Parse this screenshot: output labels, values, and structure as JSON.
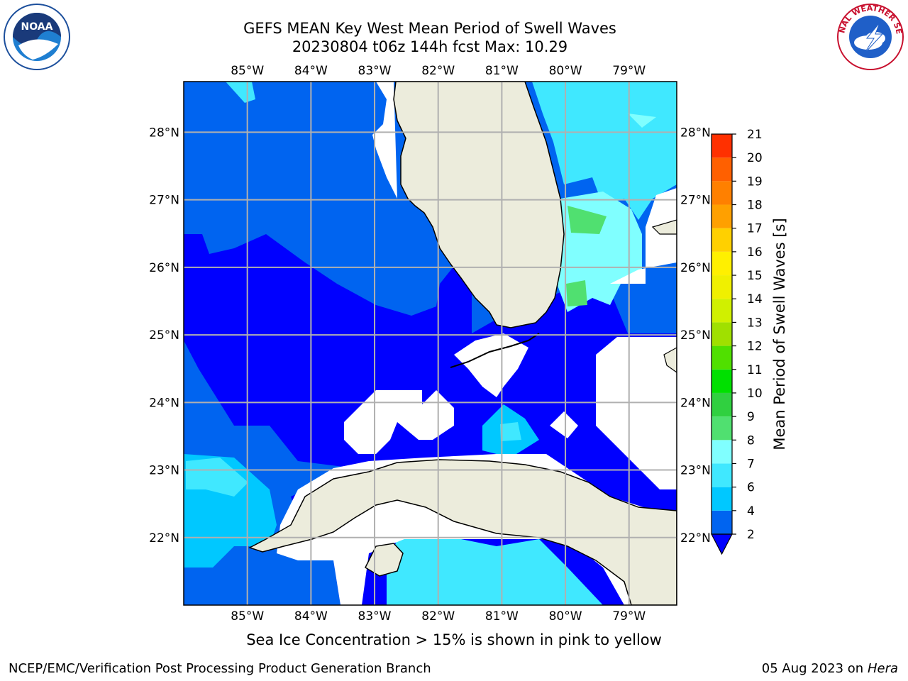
{
  "header": {
    "title_line1": "GEFS MEAN Key West Mean Period of Swell Waves",
    "title_line2": "20230804 t06z 144h fcst   Max: 10.29"
  },
  "logos": {
    "left": "NOAA",
    "right": "NATIONAL WEATHER SERVICE"
  },
  "map": {
    "lon_labels": [
      "85°W",
      "84°W",
      "83°W",
      "82°W",
      "81°W",
      "80°W",
      "79°W"
    ],
    "lat_labels": [
      "28°N",
      "27°N",
      "26°N",
      "25°N",
      "24°N",
      "23°N",
      "22°N"
    ],
    "lon_range": [
      -86.0,
      -78.25
    ],
    "lat_range": [
      21.0,
      28.75
    ]
  },
  "colorbar": {
    "label": "Mean Period of Swell Waves [s]",
    "ticks": [
      "2",
      "4",
      "6",
      "7",
      "8",
      "9",
      "10",
      "11",
      "12",
      "13",
      "14",
      "15",
      "16",
      "17",
      "18",
      "19",
      "20",
      "21"
    ],
    "colors": [
      "#0064f0",
      "#00c8ff",
      "#40e8ff",
      "#80ffff",
      "#50e070",
      "#30d040",
      "#00e000",
      "#50e000",
      "#a0e000",
      "#d0f000",
      "#f0f000",
      "#fff000",
      "#ffd000",
      "#ffa000",
      "#ff8000",
      "#ff6000",
      "#ff3000",
      "#ff0000"
    ],
    "extend_color": "#0000ff"
  },
  "footer": {
    "note": "Sea Ice Concentration > 15% is shown in pink to yellow",
    "left": "NCEP/EMC/Verification Post Processing Product Generation Branch",
    "right_prefix": "05 Aug 2023 on",
    "right_machine": "Hera"
  }
}
